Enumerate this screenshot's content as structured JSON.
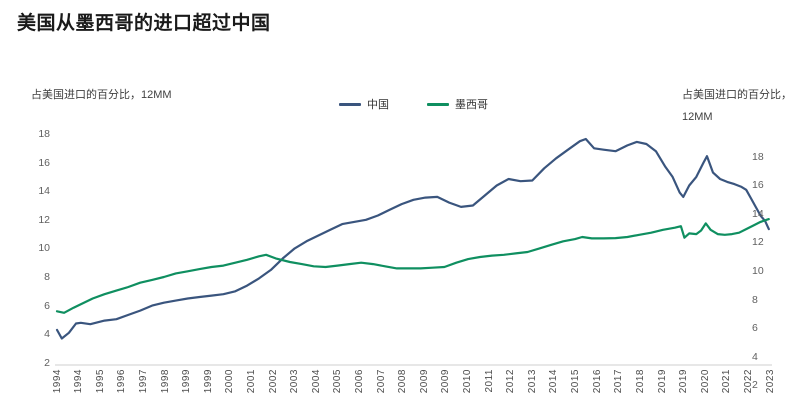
{
  "title": "美国从墨西哥的进口超过中国",
  "left_axis_header": "占美国进口的百分比，12MM",
  "right_axis_header": {
    "line1": "占美国进口的百分比，",
    "line2": "12MM"
  },
  "legend": {
    "items": [
      {
        "id": "china",
        "label": "中国",
        "color": "#3a557e"
      },
      {
        "id": "mexico",
        "label": "墨西哥",
        "color": "#0f8f60"
      }
    ]
  },
  "chart_data": {
    "type": "line",
    "title": "美国从墨西哥的进口超过中国",
    "left_axis_label": "占美国进口的百分比，12MM",
    "right_axis_label": "占美国进口的百分比，12MM",
    "xlim": [
      1994,
      2024
    ],
    "ylim": [
      2,
      18
    ],
    "y_ticks": [
      18,
      16,
      14,
      12,
      10,
      8,
      6,
      4,
      2
    ],
    "x_tick_labels": [
      "1994",
      "1994",
      "1995",
      "1996",
      "1997",
      "1998",
      "1999",
      "1999",
      "2000",
      "2001",
      "2002",
      "2003",
      "2004",
      "2005",
      "2006",
      "2007",
      "2008",
      "2009",
      "2009",
      "2010",
      "2011",
      "2012",
      "2013",
      "2014",
      "2015",
      "2016",
      "2017",
      "2018",
      "2019",
      "2019",
      "2020",
      "2021",
      "2022",
      "2023"
    ],
    "grid": false,
    "legend_position": "top-center",
    "series": [
      {
        "id": "china",
        "name": "中国",
        "color": "#3a557e",
        "x": [
          1994.0,
          1994.2,
          1994.5,
          1994.8,
          1995.0,
          1995.4,
          1996.0,
          1996.5,
          1997.0,
          1997.5,
          1998.0,
          1998.5,
          1999.0,
          1999.5,
          2000.0,
          2000.5,
          2001.0,
          2001.5,
          2002.0,
          2002.5,
          2003.0,
          2003.5,
          2004.0,
          2004.5,
          2005.0,
          2005.5,
          2006.0,
          2006.5,
          2007.0,
          2007.5,
          2008.0,
          2008.5,
          2009.0,
          2009.5,
          2010.0,
          2010.5,
          2011.0,
          2011.5,
          2012.0,
          2012.5,
          2013.0,
          2013.5,
          2014.0,
          2014.5,
          2015.0,
          2015.5,
          2016.0,
          2016.25,
          2016.6,
          2017.0,
          2017.5,
          2018.0,
          2018.4,
          2018.8,
          2019.2,
          2019.6,
          2019.9,
          2020.2,
          2020.35,
          2020.6,
          2020.9,
          2021.2,
          2021.35,
          2021.6,
          2021.9,
          2022.2,
          2022.5,
          2022.8,
          2023.0,
          2023.2,
          2023.4,
          2023.6,
          2023.8,
          2023.95
        ],
        "y": [
          4.3,
          3.7,
          4.1,
          4.75,
          4.8,
          4.7,
          4.95,
          5.05,
          5.35,
          5.65,
          6.0,
          6.2,
          6.35,
          6.5,
          6.6,
          6.7,
          6.8,
          7.0,
          7.4,
          7.9,
          8.5,
          9.3,
          10.0,
          10.5,
          10.9,
          11.3,
          11.7,
          11.85,
          12.0,
          12.3,
          12.7,
          13.1,
          13.4,
          13.55,
          13.6,
          13.2,
          12.9,
          13.0,
          13.7,
          14.4,
          14.85,
          14.7,
          14.75,
          15.6,
          16.3,
          16.9,
          17.5,
          17.65,
          17.0,
          16.9,
          16.8,
          17.2,
          17.45,
          17.3,
          16.8,
          15.7,
          15.0,
          13.9,
          13.6,
          14.4,
          15.0,
          16.0,
          16.45,
          15.3,
          14.85,
          14.65,
          14.5,
          14.3,
          14.1,
          13.5,
          12.9,
          12.3,
          11.9,
          11.35
        ]
      },
      {
        "id": "mexico",
        "name": "墨西哥",
        "color": "#0f8f60",
        "x": [
          1994.0,
          1994.3,
          1994.7,
          1995.0,
          1995.5,
          1996.0,
          1996.5,
          1997.0,
          1997.5,
          1998.0,
          1998.5,
          1999.0,
          1999.5,
          2000.0,
          2000.5,
          2001.0,
          2001.5,
          2002.0,
          2002.5,
          2002.8,
          2003.2,
          2003.8,
          2004.3,
          2004.8,
          2005.3,
          2005.8,
          2006.3,
          2006.8,
          2007.3,
          2007.8,
          2008.3,
          2008.8,
          2009.3,
          2009.8,
          2010.3,
          2010.8,
          2011.3,
          2011.8,
          2012.3,
          2012.8,
          2013.3,
          2013.8,
          2014.3,
          2014.8,
          2015.3,
          2015.8,
          2016.1,
          2016.5,
          2017.0,
          2017.5,
          2018.0,
          2018.5,
          2019.0,
          2019.5,
          2020.0,
          2020.25,
          2020.4,
          2020.6,
          2020.9,
          2021.1,
          2021.3,
          2021.5,
          2021.8,
          2022.1,
          2022.4,
          2022.7,
          2023.0,
          2023.3,
          2023.6,
          2023.95
        ],
        "y": [
          5.6,
          5.5,
          5.85,
          6.1,
          6.5,
          6.8,
          7.05,
          7.3,
          7.6,
          7.8,
          8.0,
          8.25,
          8.4,
          8.55,
          8.7,
          8.8,
          9.0,
          9.2,
          9.45,
          9.55,
          9.3,
          9.05,
          8.9,
          8.75,
          8.7,
          8.8,
          8.9,
          9.0,
          8.9,
          8.75,
          8.6,
          8.6,
          8.6,
          8.65,
          8.7,
          9.0,
          9.25,
          9.4,
          9.5,
          9.55,
          9.65,
          9.75,
          10.0,
          10.25,
          10.5,
          10.65,
          10.8,
          10.7,
          10.7,
          10.72,
          10.8,
          10.95,
          11.1,
          11.3,
          11.45,
          11.55,
          10.75,
          11.05,
          11.0,
          11.25,
          11.75,
          11.3,
          11.0,
          10.95,
          11.0,
          11.1,
          11.35,
          11.6,
          11.85,
          12.05
        ]
      }
    ]
  }
}
